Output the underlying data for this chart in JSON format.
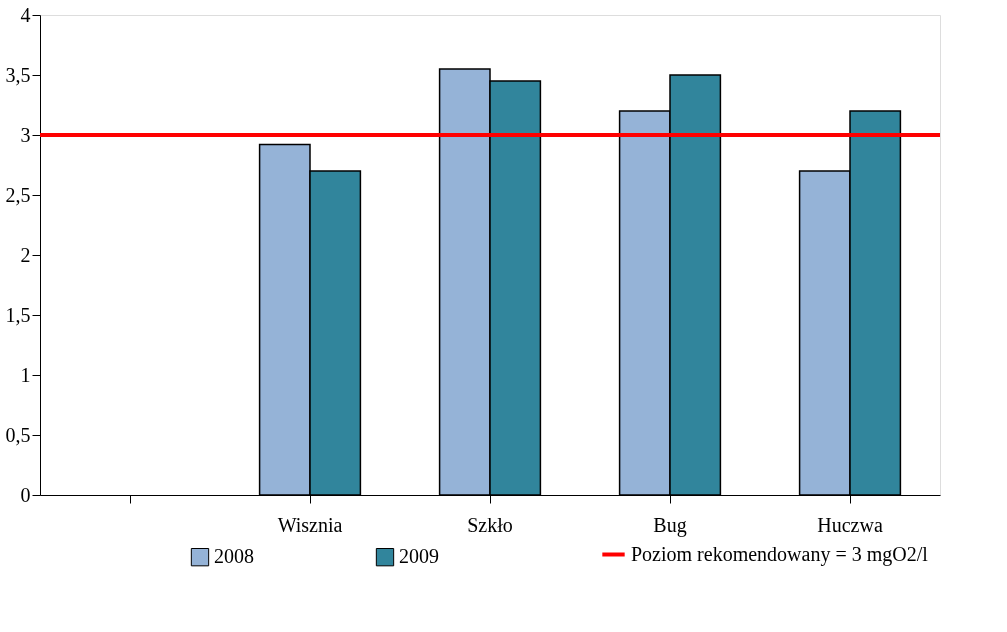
{
  "chart_data": {
    "type": "bar",
    "categories": [
      null,
      "Wisznia",
      "Szkło",
      "Bug",
      "Huczwa"
    ],
    "series": [
      {
        "name": "2008",
        "color": "#95b3d7",
        "values": [
          null,
          2.92,
          3.55,
          3.2,
          2.7
        ]
      },
      {
        "name": "2009",
        "color": "#31859c",
        "values": [
          null,
          2.7,
          3.45,
          3.5,
          3.2
        ]
      }
    ],
    "ylim": [
      0,
      4
    ],
    "yticks": [
      0,
      {
        "value": 0.5,
        "label": "0,5"
      },
      1,
      {
        "value": 1.5,
        "label": "1,5"
      },
      2,
      {
        "value": 2.5,
        "label": "2,5"
      },
      3,
      {
        "value": 3.5,
        "label": "3,5"
      },
      4
    ],
    "ref_lines": [
      {
        "axis": "y",
        "value": 3,
        "label": "Poziom rekomendowany = 3 mgO2/l",
        "color": "#ff0000"
      }
    ],
    "legend": "bottom",
    "grid": false
  }
}
